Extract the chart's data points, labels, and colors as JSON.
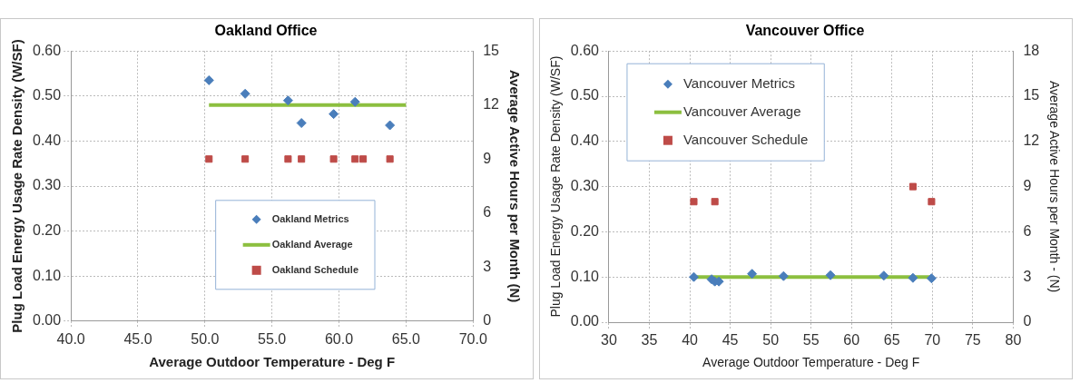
{
  "chart_data": [
    {
      "type": "scatter",
      "title": "Oakland Office",
      "xlabel": "Average Outdoor Temperature - Deg F",
      "ylabel": "Plug Load Energy Usage Rate Density (W/SF)",
      "y2label": "Average Active Hours per Month (N)",
      "xlim": [
        40,
        70
      ],
      "xticks": [
        {
          "value": 40,
          "label": "40.0"
        },
        {
          "value": 45,
          "label": "45.0"
        },
        {
          "value": 50,
          "label": "50.0"
        },
        {
          "value": 55,
          "label": "55.0"
        },
        {
          "value": 60,
          "label": "60.0"
        },
        {
          "value": 65,
          "label": "65.0"
        },
        {
          "value": 70,
          "label": "70.0"
        }
      ],
      "ylim": [
        0,
        0.6
      ],
      "yticks": [
        {
          "value": 0,
          "label": "0.00"
        },
        {
          "value": 0.1,
          "label": "0.10"
        },
        {
          "value": 0.2,
          "label": "0.20"
        },
        {
          "value": 0.3,
          "label": "0.30"
        },
        {
          "value": 0.4,
          "label": "0.40"
        },
        {
          "value": 0.5,
          "label": "0.50"
        },
        {
          "value": 0.6,
          "label": "0.60"
        }
      ],
      "y2lim": [
        0,
        15
      ],
      "y2ticks": [
        0,
        3,
        6,
        9,
        12,
        15
      ],
      "grid": true,
      "legend": "bottom",
      "series": [
        {
          "name": "Oakland Metrics",
          "marker": "diamond",
          "color": "#4a7ebb",
          "x": [
            50.3,
            53.0,
            56.2,
            57.2,
            59.6,
            61.2,
            63.8
          ],
          "values": [
            0.535,
            0.505,
            0.49,
            0.44,
            0.46,
            0.487,
            0.435
          ]
        },
        {
          "name": "Oakland Average",
          "type": "line",
          "marker": "none",
          "color": "#8cbf3f",
          "x": [
            50.3,
            65.0
          ],
          "values": [
            0.48,
            0.48
          ]
        },
        {
          "name": "Oakland Schedule",
          "marker": "square",
          "axis": "y2",
          "color": "#be4b48",
          "x": [
            50.3,
            53.0,
            56.2,
            57.2,
            59.6,
            61.2,
            61.8,
            63.8
          ],
          "values": [
            9,
            9,
            9,
            9,
            9,
            9,
            9,
            9
          ]
        }
      ]
    },
    {
      "type": "scatter",
      "title": "Vancouver Office",
      "xlabel": "Average Outdoor Temperature - Deg F",
      "ylabel": "Plug Load Energy Usage Rate Density (W/SF)",
      "y2label": "Average Active Hours per Month - (N)",
      "xlim": [
        30,
        80
      ],
      "xticks": [
        30,
        35,
        40,
        45,
        50,
        55,
        60,
        65,
        70,
        75,
        80
      ],
      "ylim": [
        0,
        0.6
      ],
      "yticks": [
        {
          "value": 0,
          "label": "0.00"
        },
        {
          "value": 0.1,
          "label": "0.10"
        },
        {
          "value": 0.2,
          "label": "0.20"
        },
        {
          "value": 0.3,
          "label": "0.30"
        },
        {
          "value": 0.4,
          "label": "0.40"
        },
        {
          "value": 0.5,
          "label": "0.50"
        },
        {
          "value": 0.6,
          "label": "0.60"
        }
      ],
      "y2lim": [
        0,
        18
      ],
      "y2ticks": [
        0,
        3,
        6,
        9,
        12,
        15,
        18
      ],
      "grid": true,
      "legend": "top left",
      "series": [
        {
          "name": "Vancouver Metrics",
          "marker": "diamond",
          "color": "#4a7ebb",
          "x": [
            40.5,
            42.7,
            43.1,
            43.6,
            47.7,
            51.6,
            57.4,
            64.0,
            67.6,
            69.9
          ],
          "values": [
            0.1,
            0.095,
            0.09,
            0.09,
            0.107,
            0.102,
            0.104,
            0.103,
            0.098,
            0.097
          ]
        },
        {
          "name": "Vancouver Average",
          "type": "line",
          "marker": "none",
          "color": "#8cbf3f",
          "x": [
            40.5,
            69.9
          ],
          "values": [
            0.1,
            0.1
          ]
        },
        {
          "name": "Vancouver Schedule",
          "marker": "square",
          "axis": "y2",
          "color": "#be4b48",
          "x": [
            40.5,
            43.1,
            67.6,
            69.9
          ],
          "values": [
            8,
            8,
            9,
            8
          ]
        }
      ]
    }
  ]
}
